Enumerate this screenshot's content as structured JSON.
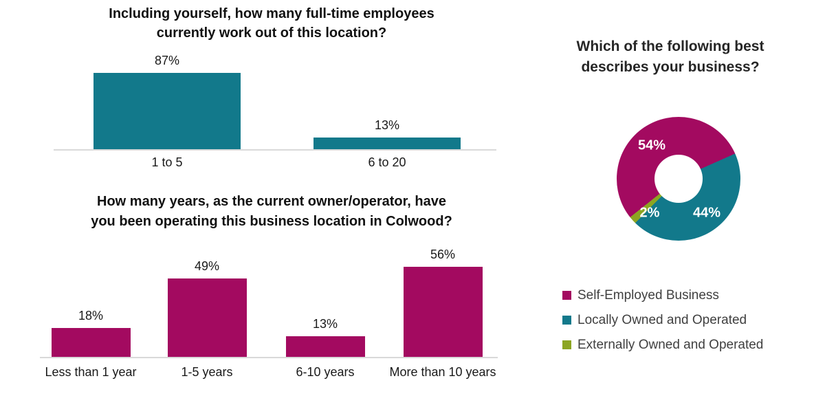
{
  "colors": {
    "teal": "#12798b",
    "magenta": "#a30a60",
    "green": "#8ca522",
    "axis": "#d9d9d9"
  },
  "chart_data": [
    {
      "id": "employees",
      "type": "bar",
      "title": "Including yourself, how many full-time employees currently work out of this location?",
      "title_lines": [
        "Including yourself, how many full-time employees",
        "currently work out of this location?"
      ],
      "categories": [
        "1 to 5",
        "6 to 20"
      ],
      "values": [
        87,
        13
      ],
      "value_labels": [
        "87%",
        "13%"
      ],
      "color_key": "teal",
      "ylim": [
        0,
        100
      ],
      "grid": false,
      "legend_position": "none"
    },
    {
      "id": "years",
      "type": "bar",
      "title": "How many years, as the current owner/operator, have you been operating this business location in Colwood?",
      "title_lines": [
        "How many years, as the current owner/operator, have",
        "you been operating this business location in Colwood?"
      ],
      "categories": [
        "Less than 1 year",
        "1-5 years",
        "6-10 years",
        "More than 10 years"
      ],
      "values": [
        18,
        49,
        13,
        56
      ],
      "value_labels": [
        "18%",
        "49%",
        "13%",
        "56%"
      ],
      "color_key": "magenta",
      "ylim": [
        0,
        100
      ],
      "grid": false,
      "legend_position": "none"
    },
    {
      "id": "business-type",
      "type": "donut",
      "title": "Which of the following best describes your business?",
      "title_lines": [
        "Which of the following best",
        "describes your business?"
      ],
      "start_angle_deg": -128.4,
      "slices": [
        {
          "label": "Self-Employed Business",
          "value": 54,
          "display": "54%",
          "color_key": "magenta"
        },
        {
          "label": "Locally Owned and Operated",
          "value": 44,
          "display": "44%",
          "color_key": "teal"
        },
        {
          "label": "Externally Owned and Operated",
          "value": 2,
          "display": "2%",
          "color_key": "green"
        }
      ],
      "legend_position": "bottom"
    }
  ]
}
